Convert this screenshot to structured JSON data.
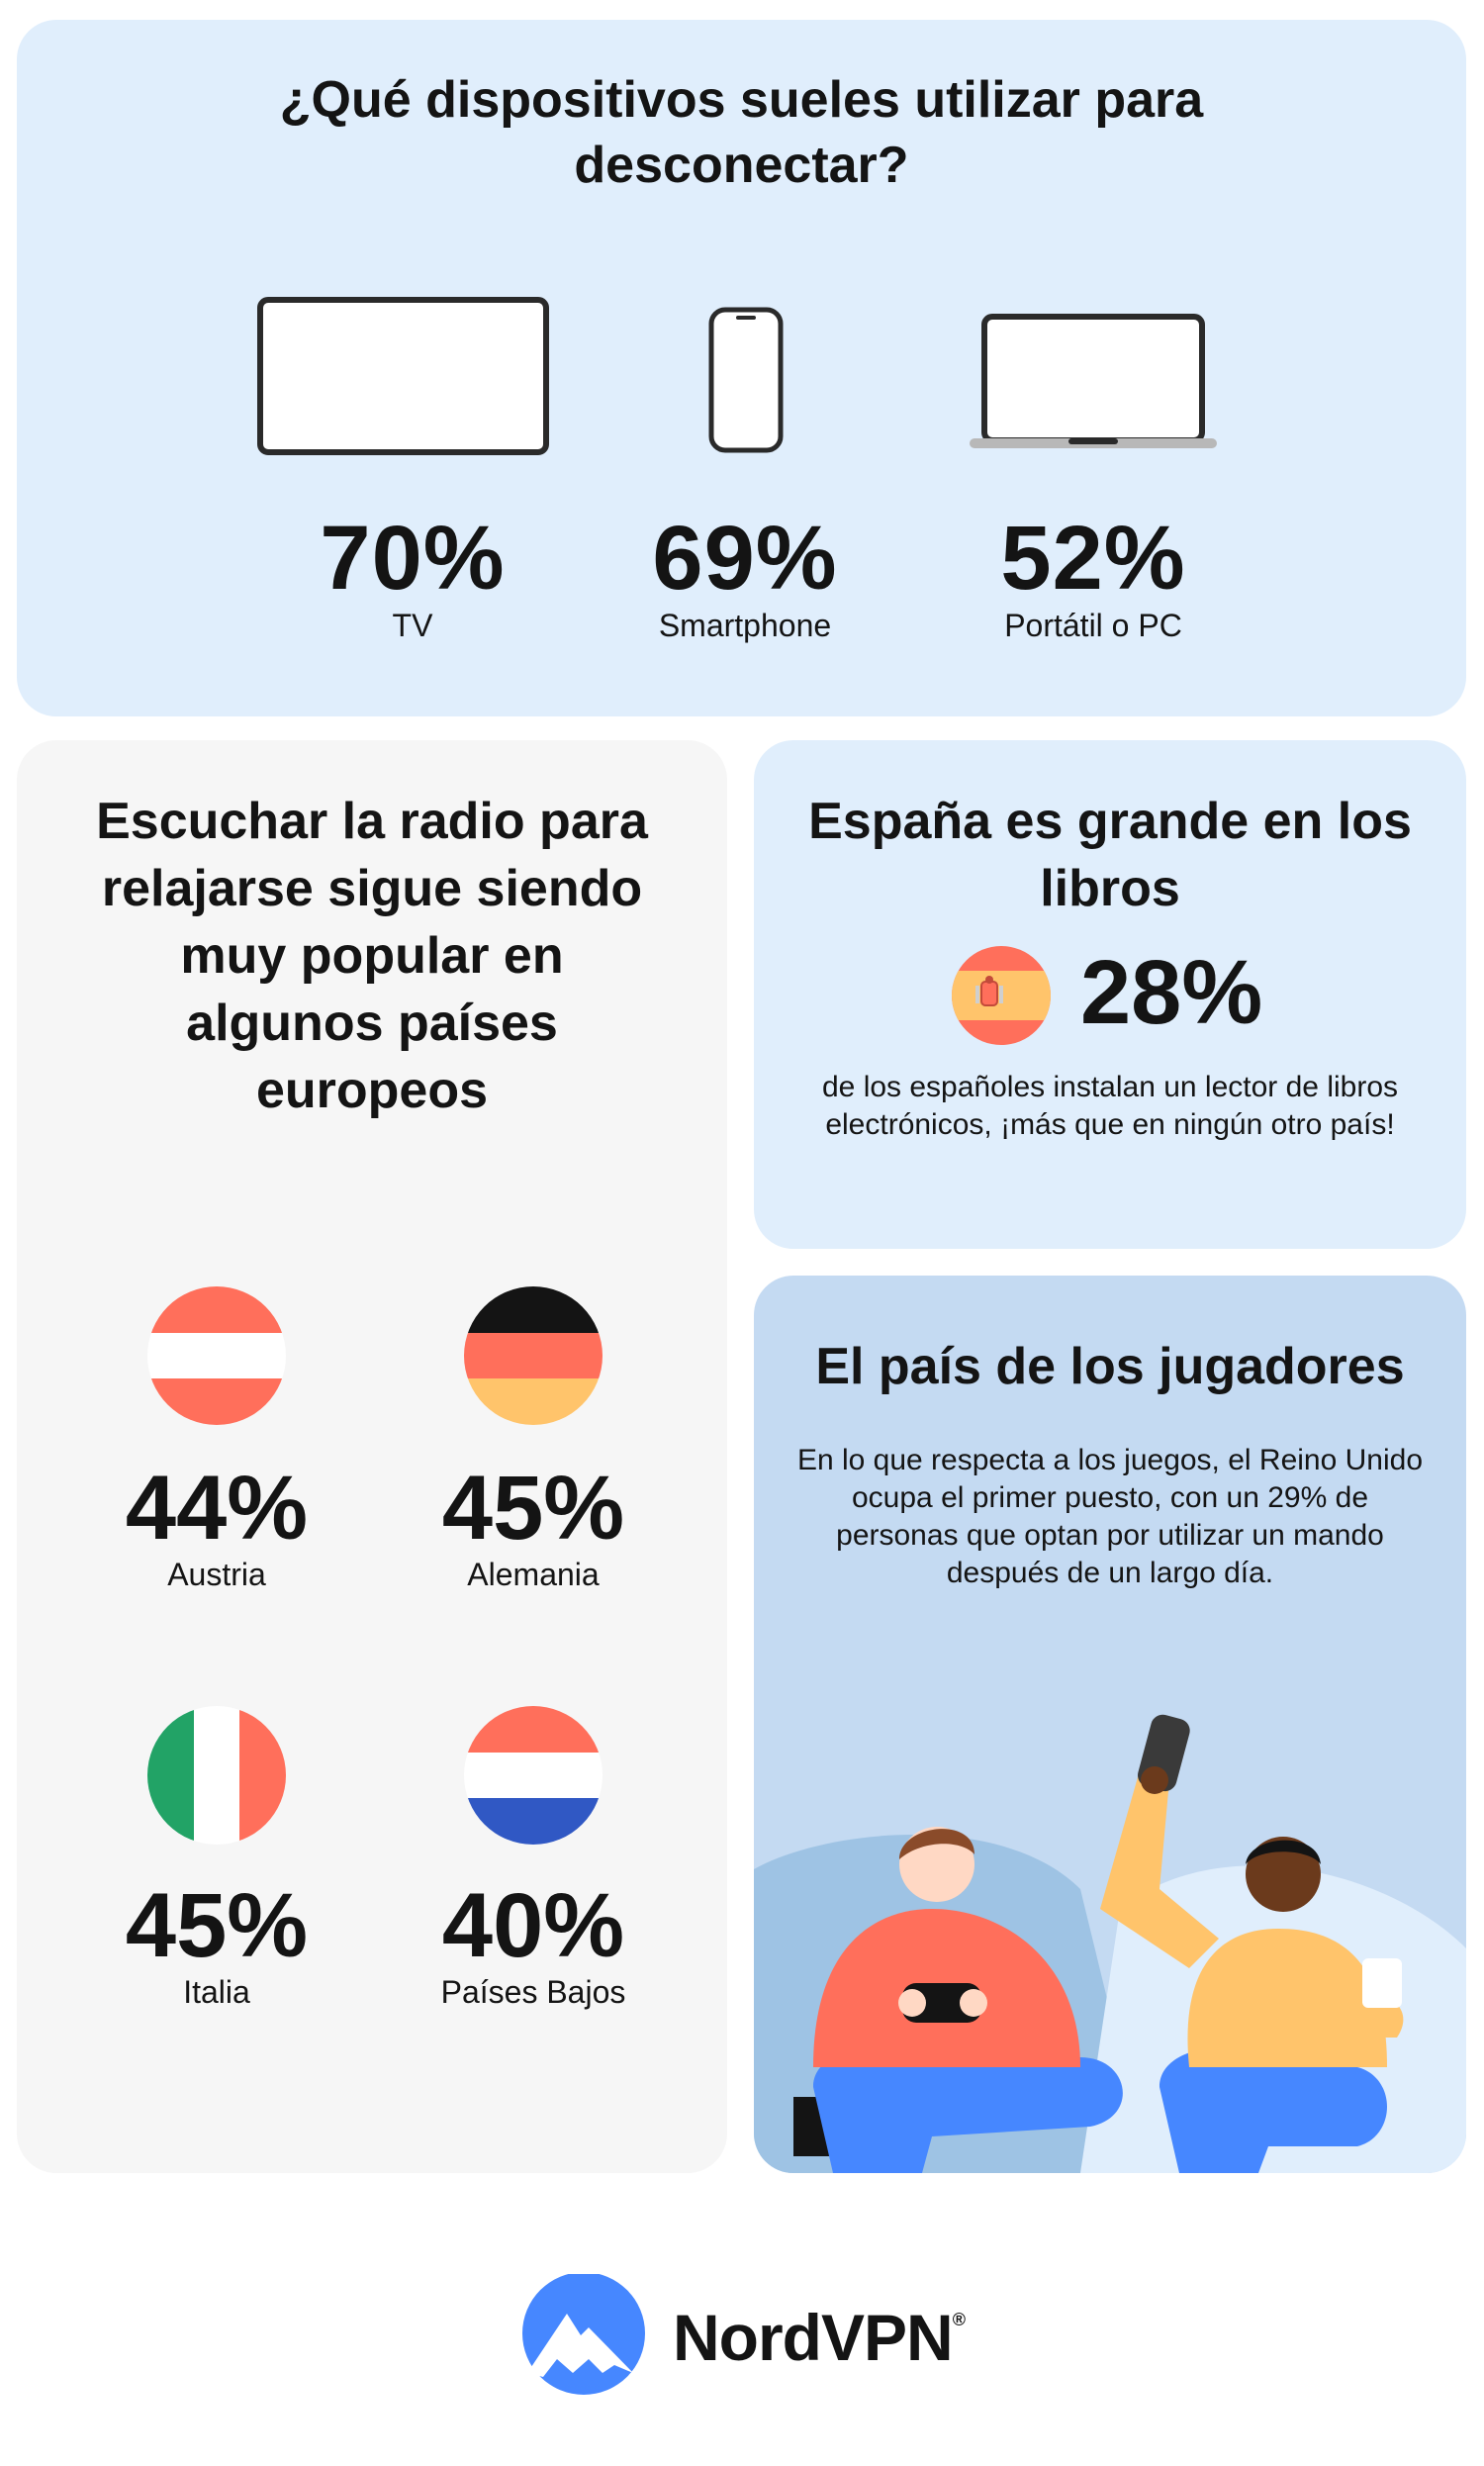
{
  "devices": {
    "title": "¿Qué dispositivos sueles utilizar para desconectar?",
    "items": [
      {
        "icon": "tv-icon",
        "percent": "70%",
        "label": "TV"
      },
      {
        "icon": "smartphone-icon",
        "percent": "69%",
        "label": "Smartphone"
      },
      {
        "icon": "laptop-icon",
        "percent": "52%",
        "label": "Portátil o PC"
      }
    ]
  },
  "radio": {
    "title": "Escuchar la radio para relajarse sigue siendo muy popular en algunos países europeos",
    "countries": [
      {
        "flag": "austria-flag-icon",
        "percent": "44%",
        "label": "Austria"
      },
      {
        "flag": "germany-flag-icon",
        "percent": "45%",
        "label": "Alemania"
      },
      {
        "flag": "italy-flag-icon",
        "percent": "45%",
        "label": "Italia"
      },
      {
        "flag": "netherlands-flag-icon",
        "percent": "40%",
        "label": "Países Bajos"
      }
    ]
  },
  "spain": {
    "title": "España es grande en los libros",
    "flag": "spain-flag-icon",
    "percent": "28%",
    "description": "de los españoles instalan un lector de libros electrónicos, ¡más que en ningún otro país!"
  },
  "gamers": {
    "title": "El país de los jugadores",
    "description": "En lo que respecta a los juegos, el Reino Unido ocupa el primer puesto, con un 29% de personas que optan por utilizar un mando después de un largo día.",
    "illustration": "gamers-illustration"
  },
  "brand": {
    "name": "NordVPN",
    "registered": "®",
    "logo_icon": "nordvpn-mountain-icon"
  },
  "colors": {
    "card_blue": "#e0eefc",
    "card_grey": "#f6f6f6",
    "card_gamers": "#c4daf2",
    "brand_blue": "#4687ff",
    "coral": "#ff6f5b"
  }
}
